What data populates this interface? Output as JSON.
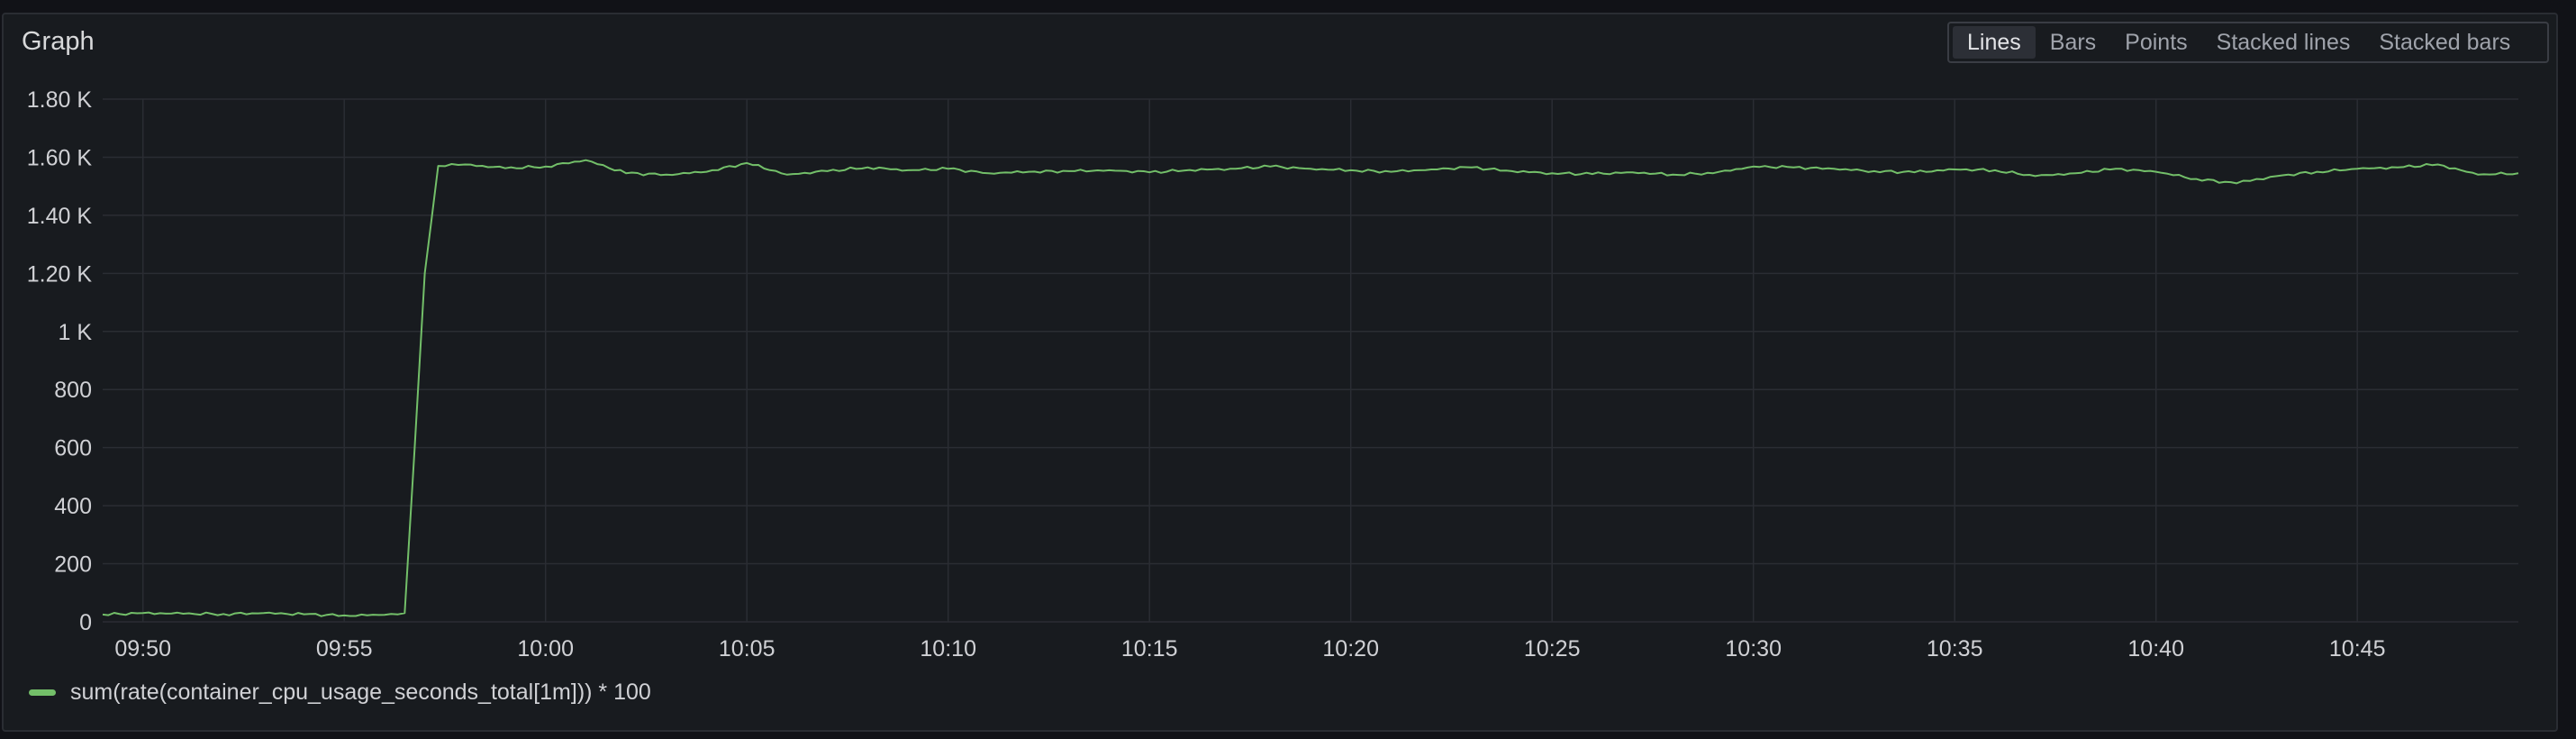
{
  "panel": {
    "title": "Graph"
  },
  "viz_switch": {
    "options": [
      "Lines",
      "Bars",
      "Points",
      "Stacked lines",
      "Stacked bars"
    ],
    "selected": "Lines"
  },
  "colors": {
    "series": "#73bf69",
    "grid": "#2a2d33",
    "background": "#181b1f"
  },
  "chart_data": {
    "type": "line",
    "ylim": [
      0,
      1800
    ],
    "yticks": [
      {
        "value": 0,
        "label": "0"
      },
      {
        "value": 200,
        "label": "200"
      },
      {
        "value": 400,
        "label": "400"
      },
      {
        "value": 600,
        "label": "600"
      },
      {
        "value": 800,
        "label": "800"
      },
      {
        "value": 1000,
        "label": "1 K"
      },
      {
        "value": 1200,
        "label": "1.20 K"
      },
      {
        "value": 1400,
        "label": "1.40 K"
      },
      {
        "value": 1600,
        "label": "1.60 K"
      },
      {
        "value": 1800,
        "label": "1.80 K"
      }
    ],
    "xlim": [
      "09:49",
      "10:49"
    ],
    "xticks": [
      "09:50",
      "09:55",
      "10:00",
      "10:05",
      "10:10",
      "10:15",
      "10:20",
      "10:25",
      "10:30",
      "10:35",
      "10:40",
      "10:45"
    ],
    "grid": true,
    "legend_position": "bottom-left",
    "series": [
      {
        "name": "sum(rate(container_cpu_usage_seconds_total[1m])) * 100",
        "points": [
          [
            "09:49",
            25
          ],
          [
            "09:50",
            30
          ],
          [
            "09:51",
            28
          ],
          [
            "09:52",
            27
          ],
          [
            "09:53",
            30
          ],
          [
            "09:54",
            26
          ],
          [
            "09:55",
            22
          ],
          [
            "09:56",
            24
          ],
          [
            "09:56:30",
            30
          ],
          [
            "09:56:45",
            600
          ],
          [
            "09:57",
            1200
          ],
          [
            "09:57:20",
            1570
          ],
          [
            "09:58",
            1575
          ],
          [
            "09:59",
            1562
          ],
          [
            "10:00",
            1568
          ],
          [
            "10:01",
            1590
          ],
          [
            "10:02",
            1545
          ],
          [
            "10:03",
            1540
          ],
          [
            "10:04",
            1550
          ],
          [
            "10:05",
            1580
          ],
          [
            "10:06",
            1540
          ],
          [
            "10:07",
            1552
          ],
          [
            "10:08",
            1565
          ],
          [
            "10:09",
            1555
          ],
          [
            "10:10",
            1560
          ],
          [
            "10:11",
            1545
          ],
          [
            "10:12",
            1550
          ],
          [
            "10:13",
            1552
          ],
          [
            "10:14",
            1555
          ],
          [
            "10:15",
            1548
          ],
          [
            "10:16",
            1556
          ],
          [
            "10:17",
            1560
          ],
          [
            "10:18",
            1568
          ],
          [
            "10:19",
            1560
          ],
          [
            "10:20",
            1555
          ],
          [
            "10:21",
            1550
          ],
          [
            "10:22",
            1558
          ],
          [
            "10:23",
            1565
          ],
          [
            "10:24",
            1552
          ],
          [
            "10:25",
            1545
          ],
          [
            "10:26",
            1542
          ],
          [
            "10:27",
            1548
          ],
          [
            "10:28",
            1540
          ],
          [
            "10:29",
            1545
          ],
          [
            "10:30",
            1568
          ],
          [
            "10:31",
            1565
          ],
          [
            "10:32",
            1560
          ],
          [
            "10:33",
            1552
          ],
          [
            "10:34",
            1548
          ],
          [
            "10:35",
            1558
          ],
          [
            "10:36",
            1555
          ],
          [
            "10:37",
            1535
          ],
          [
            "10:38",
            1545
          ],
          [
            "10:39",
            1560
          ],
          [
            "10:40",
            1550
          ],
          [
            "10:41",
            1525
          ],
          [
            "10:42",
            1510
          ],
          [
            "10:42:30",
            1525
          ],
          [
            "10:43",
            1535
          ],
          [
            "10:44",
            1550
          ],
          [
            "10:45",
            1560
          ],
          [
            "10:46",
            1565
          ],
          [
            "10:47",
            1575
          ],
          [
            "10:48",
            1540
          ],
          [
            "10:49",
            1545
          ]
        ]
      }
    ]
  }
}
